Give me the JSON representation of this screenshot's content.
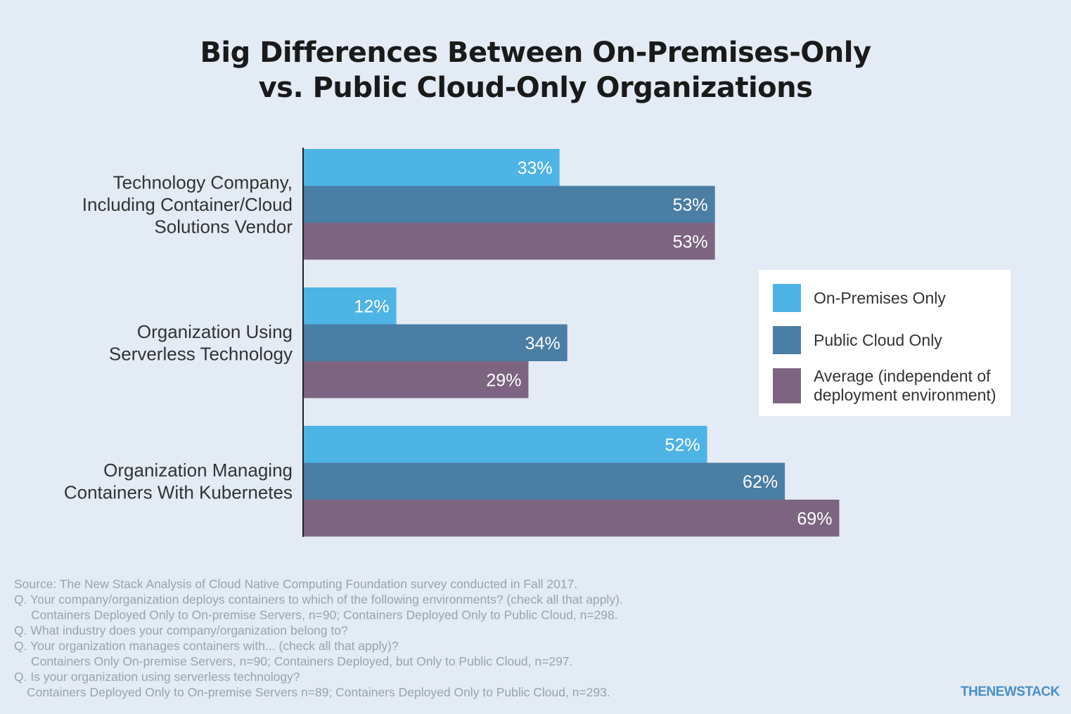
{
  "title_lines": [
    "Big Differences Between On-Premises-Only",
    "vs. Public Cloud-Only Organizations"
  ],
  "colors": {
    "on_premises": "#4eb3e5",
    "public_cloud": "#4a7ea4",
    "average": "#7d6481",
    "background": "#e3ebf5"
  },
  "chart_data": {
    "type": "bar",
    "orientation": "horizontal",
    "title": "Big Differences Between On-Premises-Only vs. Public Cloud-Only Organizations",
    "categories": [
      [
        "Technology Company,",
        "Including Container/Cloud",
        "Solutions Vendor"
      ],
      [
        "Organization Using",
        "Serverless Technology"
      ],
      [
        "Organization Managing",
        "Containers With Kubernetes"
      ]
    ],
    "series": [
      {
        "name": "On-Premises Only",
        "values": [
          33,
          12,
          52
        ],
        "labels": [
          "33%",
          "12%",
          "52%"
        ]
      },
      {
        "name": "Public Cloud Only",
        "values": [
          53,
          34,
          62
        ],
        "labels": [
          "53%",
          "34%",
          "62%"
        ]
      },
      {
        "name": "Average (independent of deployment environment)",
        "values": [
          53,
          29,
          69
        ],
        "labels": [
          "53%",
          "29%",
          "69%"
        ]
      }
    ],
    "xlim": [
      0,
      100
    ],
    "grid": false,
    "legend_position": "right"
  },
  "legend": [
    {
      "label_lines": [
        "On-Premises Only"
      ],
      "color": "#4eb3e5"
    },
    {
      "label_lines": [
        "Public Cloud Only"
      ],
      "color": "#4a7ea4"
    },
    {
      "label_lines": [
        "Average (independent of",
        "deployment environment)"
      ],
      "color": "#7d6481"
    }
  ],
  "source": {
    "line1": "Source: The New Stack Analysis of Cloud Native Computing Foundation survey conducted in Fall 2017.",
    "line2": "Q. Your company/organization deploys containers to which of the following environments? (check all that apply).",
    "line3": "Containers Deployed Only to On-premise Servers, n=90; Containers Deployed Only to Public Cloud, n=298.",
    "line4": "Q. What industry does your company/organization belong to?",
    "line5": "Q. Your organization manages containers with... (check all that apply)?",
    "line6": "Containers Only On-premise Servers, n=90; Containers Deployed, but Only to Public Cloud, n=297.",
    "line7": "Q. Is your organization using serverless technology?",
    "line8": "Containers Deployed Only to On-premise Servers n=89; Containers Deployed Only to Public Cloud, n=293."
  },
  "logo_text": "THENEWSTACK"
}
